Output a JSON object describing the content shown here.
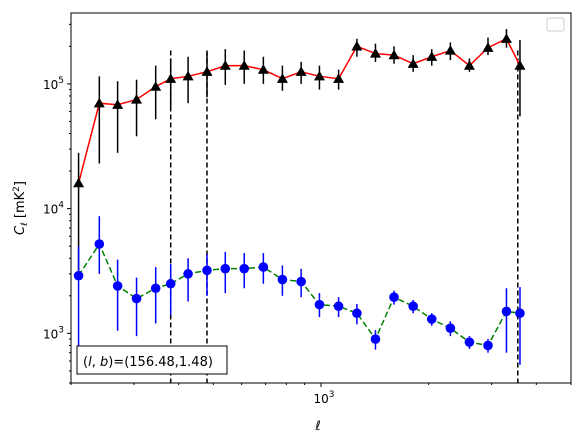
{
  "chart_data": {
    "type": "line",
    "xlabel": "ℓ",
    "ylabel_main": "C",
    "ylabel_sub": "ℓ",
    "ylabel_unit": " [mK",
    "ylabel_sup": "2",
    "ylabel_end": "]",
    "x_scale": "log",
    "y_scale": "log",
    "xlim": [
      200,
      5000
    ],
    "ylim": [
      400,
      370000
    ],
    "x_tick_labels": [
      {
        "base": "10",
        "exp": "3",
        "value": 1000
      }
    ],
    "y_tick_labels": [
      {
        "base": "10",
        "exp": "3",
        "value": 1000
      },
      {
        "base": "10",
        "exp": "4",
        "value": 10000
      },
      {
        "base": "10",
        "exp": "5",
        "value": 100000
      }
    ],
    "grid": false,
    "legend": "top-right (empty box)",
    "annotation": "(l, b)=(156.48,1.48)",
    "annotation_prefix": "(",
    "annotation_l": "l",
    "annotation_sep": ", ",
    "annotation_b": "b",
    "annotation_suffix": ")=(156.48,1.48)",
    "vlines": [
      380,
      480,
      3550
    ],
    "series": [
      {
        "marker": "triangle",
        "marker_color": "#000000",
        "line_color": "#ff0000",
        "line_style": "solid",
        "errorbar_color": "#000000",
        "points": [
          {
            "x": 210,
            "y": 16000,
            "lo": 3000,
            "hi": 28000
          },
          {
            "x": 240,
            "y": 70000,
            "lo": 23000,
            "hi": 115000
          },
          {
            "x": 270,
            "y": 68000,
            "lo": 28000,
            "hi": 105000
          },
          {
            "x": 305,
            "y": 75000,
            "lo": 38000,
            "hi": 108000
          },
          {
            "x": 345,
            "y": 95000,
            "lo": 52000,
            "hi": 140000
          },
          {
            "x": 380,
            "y": 110000,
            "lo": 65000,
            "hi": 160000
          },
          {
            "x": 425,
            "y": 115000,
            "lo": 70000,
            "hi": 165000
          },
          {
            "x": 480,
            "y": 125000,
            "lo": 78000,
            "hi": 180000
          },
          {
            "x": 540,
            "y": 140000,
            "lo": 98000,
            "hi": 190000
          },
          {
            "x": 610,
            "y": 140000,
            "lo": 100000,
            "hi": 185000
          },
          {
            "x": 690,
            "y": 130000,
            "lo": 100000,
            "hi": 165000
          },
          {
            "x": 780,
            "y": 110000,
            "lo": 88000,
            "hi": 140000
          },
          {
            "x": 880,
            "y": 125000,
            "lo": 100000,
            "hi": 150000
          },
          {
            "x": 990,
            "y": 115000,
            "lo": 90000,
            "hi": 140000
          },
          {
            "x": 1120,
            "y": 110000,
            "lo": 90000,
            "hi": 130000
          },
          {
            "x": 1260,
            "y": 200000,
            "lo": 165000,
            "hi": 230000
          },
          {
            "x": 1420,
            "y": 175000,
            "lo": 150000,
            "hi": 210000
          },
          {
            "x": 1600,
            "y": 170000,
            "lo": 145000,
            "hi": 200000
          },
          {
            "x": 1810,
            "y": 145000,
            "lo": 125000,
            "hi": 170000
          },
          {
            "x": 2040,
            "y": 165000,
            "lo": 140000,
            "hi": 190000
          },
          {
            "x": 2300,
            "y": 185000,
            "lo": 155000,
            "hi": 215000
          },
          {
            "x": 2600,
            "y": 140000,
            "lo": 125000,
            "hi": 160000
          },
          {
            "x": 2930,
            "y": 195000,
            "lo": 170000,
            "hi": 235000
          },
          {
            "x": 3300,
            "y": 230000,
            "lo": 195000,
            "hi": 275000
          },
          {
            "x": 3600,
            "y": 140000,
            "lo": 55000,
            "hi": 225000
          }
        ]
      },
      {
        "marker": "circle",
        "marker_color": "#0000ff",
        "line_color": "#008000",
        "line_style": "dashed",
        "errorbar_color": "#0000ff",
        "points": [
          {
            "x": 210,
            "y": 2900,
            "lo": 500,
            "hi": 5000
          },
          {
            "x": 240,
            "y": 5200,
            "lo": 3000,
            "hi": 8700
          },
          {
            "x": 270,
            "y": 2400,
            "lo": 1050,
            "hi": 3900
          },
          {
            "x": 305,
            "y": 1900,
            "lo": 950,
            "hi": 2800
          },
          {
            "x": 345,
            "y": 2300,
            "lo": 1200,
            "hi": 3400
          },
          {
            "x": 380,
            "y": 2500,
            "lo": 1400,
            "hi": 3600
          },
          {
            "x": 425,
            "y": 3000,
            "lo": 1800,
            "hi": 4000
          },
          {
            "x": 480,
            "y": 3200,
            "lo": 2000,
            "hi": 4300
          },
          {
            "x": 540,
            "y": 3300,
            "lo": 2100,
            "hi": 4500
          },
          {
            "x": 610,
            "y": 3300,
            "lo": 2300,
            "hi": 4400
          },
          {
            "x": 690,
            "y": 3400,
            "lo": 2500,
            "hi": 4400
          },
          {
            "x": 780,
            "y": 2700,
            "lo": 2000,
            "hi": 3500
          },
          {
            "x": 880,
            "y": 2600,
            "lo": 1950,
            "hi": 3300
          },
          {
            "x": 990,
            "y": 1700,
            "lo": 1350,
            "hi": 2100
          },
          {
            "x": 1120,
            "y": 1650,
            "lo": 1350,
            "hi": 1950
          },
          {
            "x": 1260,
            "y": 1450,
            "lo": 1180,
            "hi": 1720
          },
          {
            "x": 1420,
            "y": 900,
            "lo": 740,
            "hi": 1060
          },
          {
            "x": 1600,
            "y": 1950,
            "lo": 1700,
            "hi": 2200
          },
          {
            "x": 1810,
            "y": 1650,
            "lo": 1450,
            "hi": 1850
          },
          {
            "x": 2040,
            "y": 1300,
            "lo": 1150,
            "hi": 1450
          },
          {
            "x": 2300,
            "y": 1100,
            "lo": 950,
            "hi": 1250
          },
          {
            "x": 2600,
            "y": 850,
            "lo": 750,
            "hi": 950
          },
          {
            "x": 2930,
            "y": 800,
            "lo": 700,
            "hi": 900
          },
          {
            "x": 3300,
            "y": 1500,
            "lo": 700,
            "hi": 2300
          },
          {
            "x": 3600,
            "y": 1450,
            "lo": 560,
            "hi": 2350
          }
        ]
      }
    ]
  }
}
